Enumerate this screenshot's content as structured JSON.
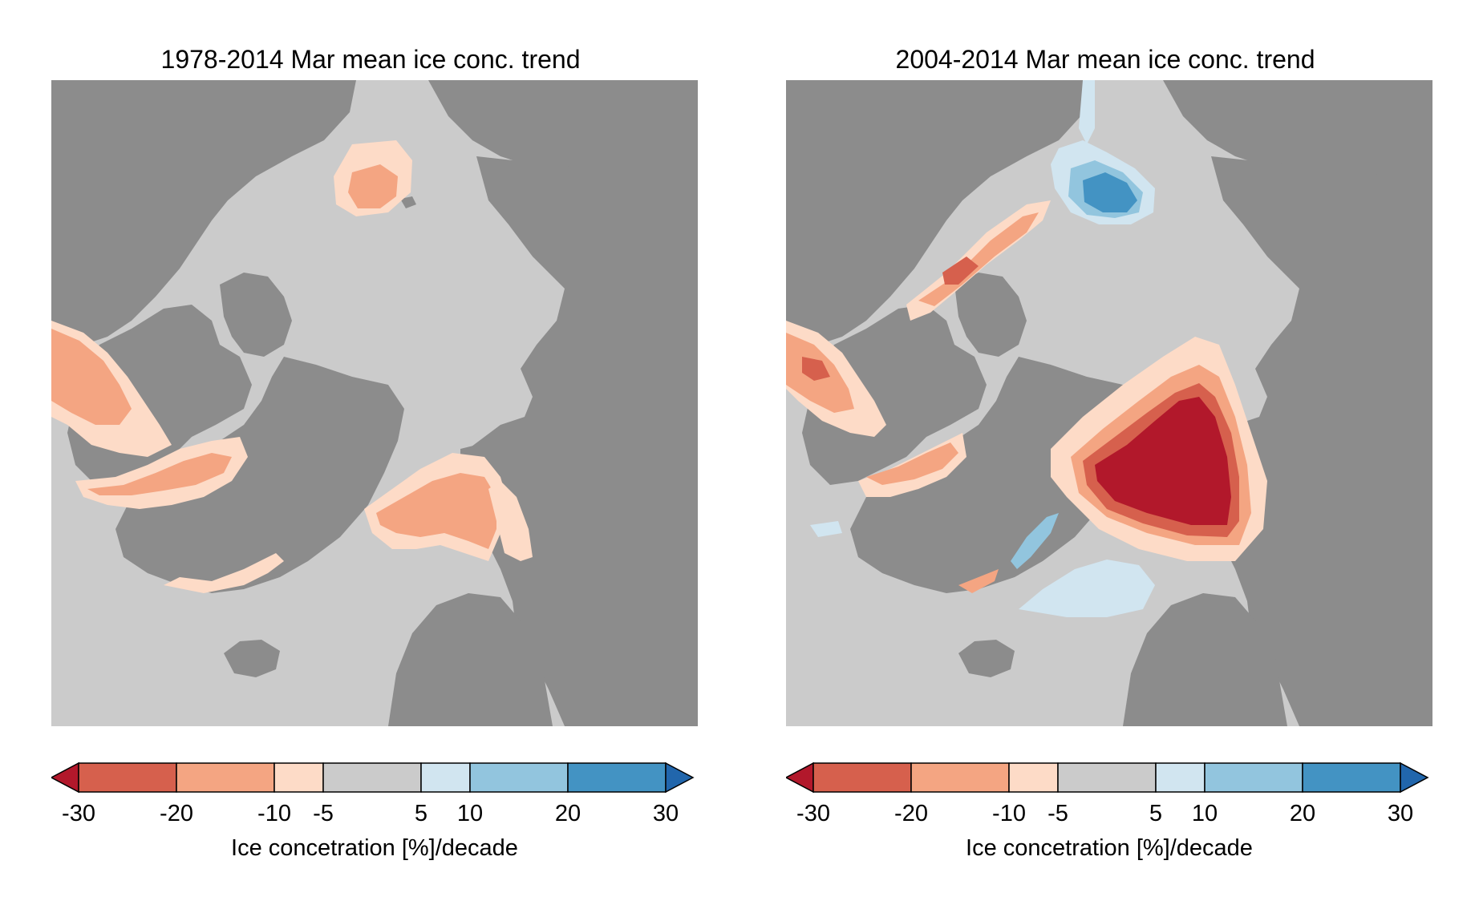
{
  "panels": [
    {
      "title": "1978-2014 Mar mean ice conc. trend",
      "colorbar_label": "Ice concetration [%]/decade"
    },
    {
      "title": "2004-2014 Mar mean ice conc. trend",
      "colorbar_label": "Ice concetration [%]/decade"
    }
  ],
  "colorbar": {
    "ticks": [
      "-30",
      "-20",
      "-10",
      "-5",
      "5",
      "10",
      "20",
      "30"
    ],
    "tick_values": [
      -30,
      -20,
      -10,
      -5,
      5,
      10,
      20,
      30
    ],
    "range": [
      -30,
      30
    ],
    "bin_colors": [
      "#d6604d",
      "#f4a582",
      "#fddbc7",
      "#cbcbcb",
      "#d1e5f0",
      "#92c5de",
      "#4393c3"
    ],
    "under_color": "#b2182b",
    "over_color": "#2166ac",
    "extend": "both"
  },
  "map_colors": {
    "land": "#8c8c8c",
    "ocean_no_trend": "#cbcbcb",
    "river": "#a6a6a6"
  }
}
